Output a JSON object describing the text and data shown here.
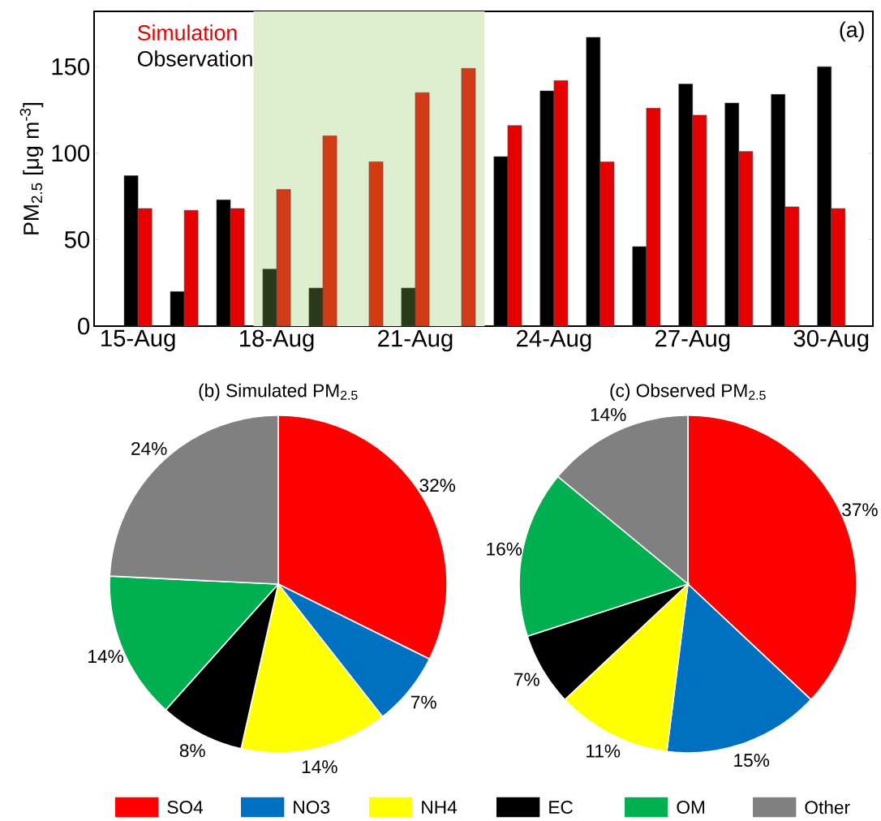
{
  "chart_data": [
    {
      "type": "bar",
      "ylabel": "PM$_{2.5}$ [μg m$^{-3}$]",
      "annotations": [
        "(a)"
      ],
      "legend": "top left",
      "categories": [
        "15-Aug",
        null,
        null,
        "18-Aug",
        null,
        null,
        "21-Aug",
        null,
        null,
        "24-Aug",
        null,
        null,
        "27-Aug",
        null,
        null,
        "30-Aug"
      ],
      "series": [
        {
          "name": "Observation",
          "color": "#000000",
          "colors": [
            "#000000",
            "#000000",
            "#000000",
            "#2b3a19",
            "#2b3a19",
            "#2b3a19",
            "#2b3a19",
            "#2b3a19",
            "#000000",
            "#000000",
            "#000000",
            "#000000",
            "#000000",
            "#000000",
            "#000000",
            "#000000"
          ],
          "values": [
            87,
            20,
            73,
            33,
            22,
            null,
            22,
            null,
            98,
            136,
            167,
            46,
            140,
            129,
            134,
            150
          ]
        },
        {
          "name": "Simulation",
          "color": "#e60000",
          "colors": [
            "#e60000",
            "#e60000",
            "#e60000",
            "#d33a16",
            "#d33a16",
            "#d33a16",
            "#d33a16",
            "#d33a16",
            "#e60000",
            "#e60000",
            "#e60000",
            "#e60000",
            "#e60000",
            "#e60000",
            "#e60000",
            "#e60000"
          ],
          "values": [
            68,
            67,
            68,
            79,
            110,
            95,
            135,
            149,
            116,
            142,
            95,
            126,
            122,
            101,
            69,
            68
          ]
        }
      ],
      "ylim": [
        0,
        182
      ],
      "yticks": [
        0,
        50,
        100,
        150
      ]
    },
    {
      "type": "pie",
      "title": "(b) Simulated PM$_{2.5}$",
      "values": [
        32,
        7,
        14,
        8,
        14,
        24
      ],
      "colors": [
        "#ff0000",
        "#0070c0",
        "#ffff00",
        "#000000",
        "#00b050",
        "#808080"
      ],
      "value_labels": [
        "32%",
        "7%",
        "14%",
        "8%",
        "14%",
        "24%"
      ]
    },
    {
      "type": "pie",
      "title": "(c) Observed PM$_{2.5}$",
      "categories": [
        "SO4",
        "NO3",
        "NH4",
        "EC",
        "OM",
        "Other"
      ],
      "values": [
        37,
        15,
        11,
        7,
        16,
        14
      ],
      "colors": [
        "#ff0000",
        "#0070c0",
        "#ffff00",
        "#000000",
        "#00b050",
        "#808080"
      ],
      "value_labels": [
        "37%",
        "15%",
        "11%",
        "7%",
        "16%",
        "14%"
      ],
      "legend": "bottom"
    }
  ]
}
